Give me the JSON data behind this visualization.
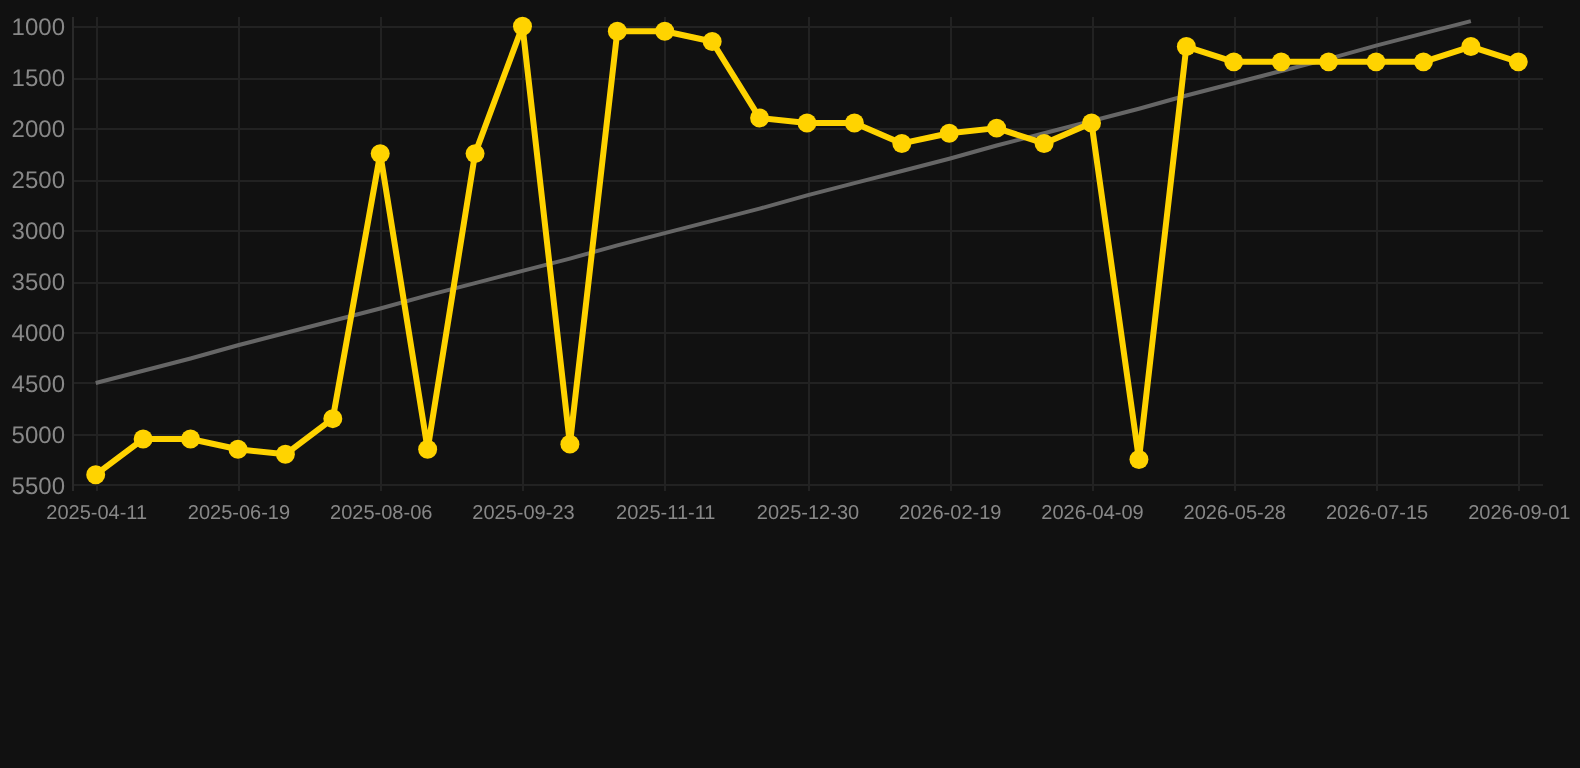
{
  "chart_data": {
    "type": "line",
    "categories": [
      "2025-04-11",
      null,
      null,
      "2025-06-19",
      null,
      null,
      "2025-08-06",
      null,
      null,
      "2025-09-23",
      null,
      null,
      "2025-11-11",
      null,
      null,
      "2025-12-30",
      null,
      null,
      "2026-02-19",
      null,
      null,
      "2026-04-09",
      null,
      null,
      "2026-05-28",
      null,
      null,
      "2026-07-15",
      null,
      null,
      "2026-09-01"
    ],
    "series": [
      {
        "color": "#666666",
        "marker": "none",
        "values": [
          4500,
          4380,
          4260,
          4130,
          4010,
          3890,
          3770,
          3640,
          3520,
          3400,
          3280,
          3150,
          3030,
          2910,
          2790,
          2660,
          2540,
          2420,
          2300,
          2170,
          2050,
          1930,
          1810,
          1680,
          1560,
          1440,
          1320,
          1190,
          1070,
          950,
          null
        ]
      },
      {
        "color": "#ffd300",
        "marker": "circle",
        "values": [
          5400,
          5050,
          5050,
          5150,
          5200,
          4850,
          2250,
          5150,
          2250,
          1000,
          5100,
          1050,
          1050,
          1150,
          1900,
          1950,
          1950,
          2150,
          2050,
          2000,
          2150,
          1950,
          5250,
          1200,
          1350,
          1350,
          1350,
          1350,
          1350,
          1200,
          1350
        ]
      }
    ],
    "ylim": [
      5550,
      900
    ],
    "yticks": [
      1000,
      1500,
      2000,
      2500,
      3000,
      3500,
      4000,
      4500,
      5000,
      5500
    ],
    "grid": true
  }
}
